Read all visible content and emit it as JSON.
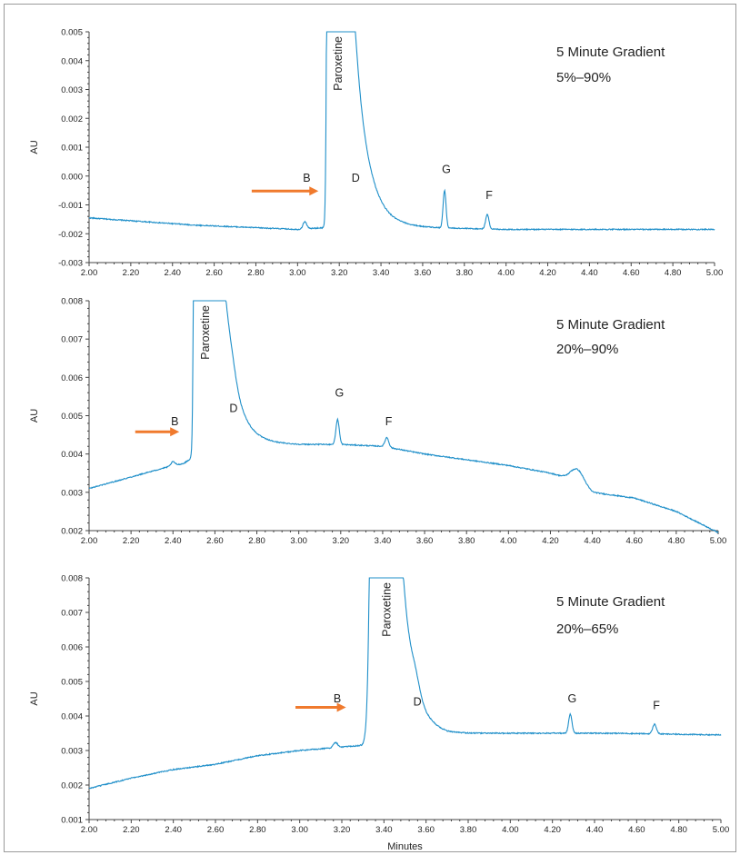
{
  "colors": {
    "trace": "#1f8fc9",
    "arrow": "#f07a2d",
    "axis": "#444444",
    "text": "#222222"
  },
  "chart_data": [
    {
      "type": "line",
      "title": "",
      "annotation_lines": [
        "5 Minute Gradient",
        "5%–90%"
      ],
      "xlabel": "",
      "ylabel": "AU",
      "xlim": [
        2.0,
        5.0
      ],
      "ylim": [
        -0.003,
        0.005
      ],
      "x_ticks": [
        "2.00",
        "2.20",
        "2.40",
        "2.60",
        "2.80",
        "3.00",
        "3.20",
        "3.40",
        "3.60",
        "3.80",
        "4.00",
        "4.20",
        "4.40",
        "4.60",
        "4.80",
        "5.00"
      ],
      "y_ticks": [
        "-0.003",
        "-0.002",
        "-0.001",
        "0.000",
        "0.001",
        "0.002",
        "0.003",
        "0.004",
        "0.005"
      ],
      "baseline": [
        [
          2.0,
          -0.00145
        ],
        [
          2.5,
          -0.0017
        ],
        [
          3.0,
          -0.00185
        ],
        [
          3.1,
          -0.0018
        ],
        [
          3.5,
          -0.00175
        ],
        [
          3.7,
          -0.0018
        ],
        [
          4.0,
          -0.00185
        ],
        [
          4.5,
          -0.00185
        ],
        [
          5.0,
          -0.00185
        ]
      ],
      "main_peak": {
        "name": "Paroxetine",
        "center": 3.155,
        "sigma_left": 0.008,
        "tail_tau": 0.07,
        "amplitude": 0.06
      },
      "peaks": [
        {
          "label": "B",
          "x": 3.035,
          "height": 0.00025,
          "sigma": 0.009,
          "label_y": -0.0002,
          "show_label": true
        },
        {
          "label": "D",
          "x": 3.27,
          "height": 0.0004,
          "sigma": 0.02,
          "label_y": -0.0002,
          "show_label": true
        },
        {
          "label": "G",
          "x": 3.705,
          "height": 0.0013,
          "sigma": 0.007,
          "label_y": 0.0001,
          "show_label": true
        },
        {
          "label": "F",
          "x": 3.91,
          "height": 0.0005,
          "sigma": 0.008,
          "label_y": -0.0008,
          "show_label": true
        }
      ],
      "arrow": {
        "x_start": 2.78,
        "x_end": 3.1,
        "y": -0.00052
      }
    },
    {
      "type": "line",
      "title": "",
      "annotation_lines": [
        "5 Minute Gradient",
        "20%–90%"
      ],
      "xlabel": "",
      "ylabel": "AU",
      "xlim": [
        2.0,
        5.0
      ],
      "ylim": [
        0.002,
        0.008
      ],
      "x_ticks": [
        "2.00",
        "2.20",
        "2.40",
        "2.60",
        "2.80",
        "3.00",
        "3.20",
        "3.40",
        "3.60",
        "3.80",
        "4.00",
        "4.20",
        "4.40",
        "4.60",
        "4.80",
        "5.00"
      ],
      "y_ticks": [
        "0.002",
        "0.003",
        "0.004",
        "0.005",
        "0.006",
        "0.007",
        "0.008"
      ],
      "baseline": [
        [
          2.0,
          0.0031
        ],
        [
          2.2,
          0.0034
        ],
        [
          2.4,
          0.0037
        ],
        [
          2.45,
          0.00375
        ],
        [
          2.6,
          0.0043
        ],
        [
          2.8,
          0.0043
        ],
        [
          3.0,
          0.00425
        ],
        [
          3.2,
          0.00425
        ],
        [
          3.4,
          0.0042
        ],
        [
          3.6,
          0.004
        ],
        [
          3.8,
          0.00385
        ],
        [
          4.0,
          0.0037
        ],
        [
          4.2,
          0.0035
        ],
        [
          4.3,
          0.00335
        ],
        [
          4.4,
          0.003
        ],
        [
          4.6,
          0.00285
        ],
        [
          4.8,
          0.0025
        ],
        [
          5.0,
          0.00195
        ]
      ],
      "main_peak": {
        "name": "Paroxetine",
        "center": 2.515,
        "sigma_left": 0.008,
        "tail_tau": 0.06,
        "amplitude": 0.06
      },
      "peaks": [
        {
          "label": "B",
          "x": 2.4,
          "height": 0.0001,
          "sigma": 0.009,
          "label_y": 0.00475,
          "show_label": true
        },
        {
          "label": "D",
          "x": 2.68,
          "height": 0.00025,
          "sigma": 0.02,
          "label_y": 0.0051,
          "show_label": true
        },
        {
          "label": "G",
          "x": 3.185,
          "height": 0.00065,
          "sigma": 0.008,
          "label_y": 0.0055,
          "show_label": true
        },
        {
          "label": "F",
          "x": 3.42,
          "height": 0.00025,
          "sigma": 0.009,
          "label_y": 0.00475,
          "show_label": true
        },
        {
          "label": "",
          "x": 4.33,
          "height": 0.00035,
          "sigma": 0.03,
          "label_y": 0.0,
          "show_label": false
        }
      ],
      "arrow": {
        "x_start": 2.22,
        "x_end": 2.43,
        "y": 0.00458
      }
    },
    {
      "type": "line",
      "title": "",
      "annotation_lines": [
        "5 Minute Gradient",
        "20%–65%"
      ],
      "xlabel": "Minutes",
      "ylabel": "AU",
      "xlim": [
        2.0,
        5.0
      ],
      "ylim": [
        0.001,
        0.008
      ],
      "x_ticks": [
        "2.00",
        "2.20",
        "2.40",
        "2.60",
        "2.80",
        "3.00",
        "3.20",
        "3.40",
        "3.60",
        "3.80",
        "4.00",
        "4.20",
        "4.40",
        "4.60",
        "4.80",
        "5.00"
      ],
      "y_ticks": [
        "0.001",
        "0.002",
        "0.003",
        "0.004",
        "0.005",
        "0.006",
        "0.007",
        "0.008"
      ],
      "baseline": [
        [
          2.0,
          0.0019
        ],
        [
          2.2,
          0.0022
        ],
        [
          2.4,
          0.00245
        ],
        [
          2.6,
          0.0026
        ],
        [
          2.8,
          0.00285
        ],
        [
          3.0,
          0.003
        ],
        [
          3.2,
          0.0031
        ],
        [
          3.3,
          0.00315
        ],
        [
          3.45,
          0.0037
        ],
        [
          3.6,
          0.0036
        ],
        [
          3.7,
          0.0035
        ],
        [
          4.0,
          0.0035
        ],
        [
          4.5,
          0.0035
        ],
        [
          5.0,
          0.00345
        ]
      ],
      "main_peak": {
        "name": "Paroxetine",
        "center": 3.375,
        "sigma_left": 0.02,
        "tail_tau": 0.055,
        "amplitude": 0.06
      },
      "peaks": [
        {
          "label": "B",
          "x": 3.17,
          "height": 0.00015,
          "sigma": 0.01,
          "label_y": 0.0044,
          "show_label": true
        },
        {
          "label": "D",
          "x": 3.55,
          "height": 0.00035,
          "sigma": 0.02,
          "label_y": 0.0043,
          "show_label": true
        },
        {
          "label": "G",
          "x": 4.285,
          "height": 0.00055,
          "sigma": 0.008,
          "label_y": 0.0044,
          "show_label": true
        },
        {
          "label": "F",
          "x": 4.685,
          "height": 0.00028,
          "sigma": 0.009,
          "label_y": 0.0042,
          "show_label": true
        }
      ],
      "arrow": {
        "x_start": 2.98,
        "x_end": 3.22,
        "y": 0.00425
      }
    }
  ]
}
